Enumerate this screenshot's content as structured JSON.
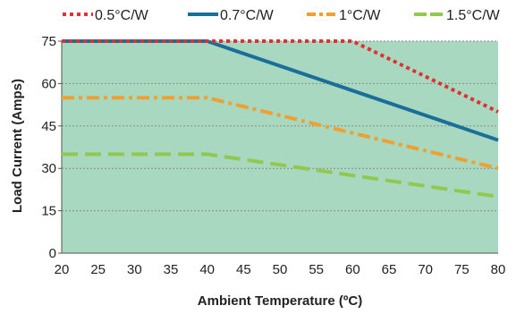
{
  "chart_data": {
    "type": "line",
    "xlabel": "Ambient Temperature (ºC)",
    "ylabel": "Load Current (Amps)",
    "xlim": [
      20,
      80
    ],
    "ylim": [
      0,
      75
    ],
    "x_ticks": [
      20,
      25,
      30,
      35,
      40,
      45,
      50,
      55,
      60,
      65,
      70,
      75,
      80
    ],
    "y_ticks": [
      0,
      15,
      30,
      45,
      60,
      75
    ],
    "grid": true,
    "legend_position": "top",
    "area_fill_color": "#a8d8c0",
    "series": [
      {
        "name": "0.5°C/W",
        "color": "#e03030",
        "dash": "dotted",
        "x": [
          20,
          40,
          60,
          80
        ],
        "y": [
          75,
          75,
          75,
          50
        ]
      },
      {
        "name": "0.7°C/W",
        "color": "#1a6f9a",
        "dash": "solid",
        "x": [
          20,
          40,
          60,
          80
        ],
        "y": [
          75,
          75,
          57.5,
          40
        ]
      },
      {
        "name": "1°C/W",
        "color": "#f0a030",
        "dash": "dashdot",
        "x": [
          20,
          40,
          60,
          80
        ],
        "y": [
          55,
          55,
          42.5,
          30
        ]
      },
      {
        "name": "1.5°C/W",
        "color": "#90c850",
        "dash": "longdash",
        "x": [
          20,
          40,
          60,
          80
        ],
        "y": [
          35,
          35,
          27.5,
          20
        ]
      }
    ]
  }
}
